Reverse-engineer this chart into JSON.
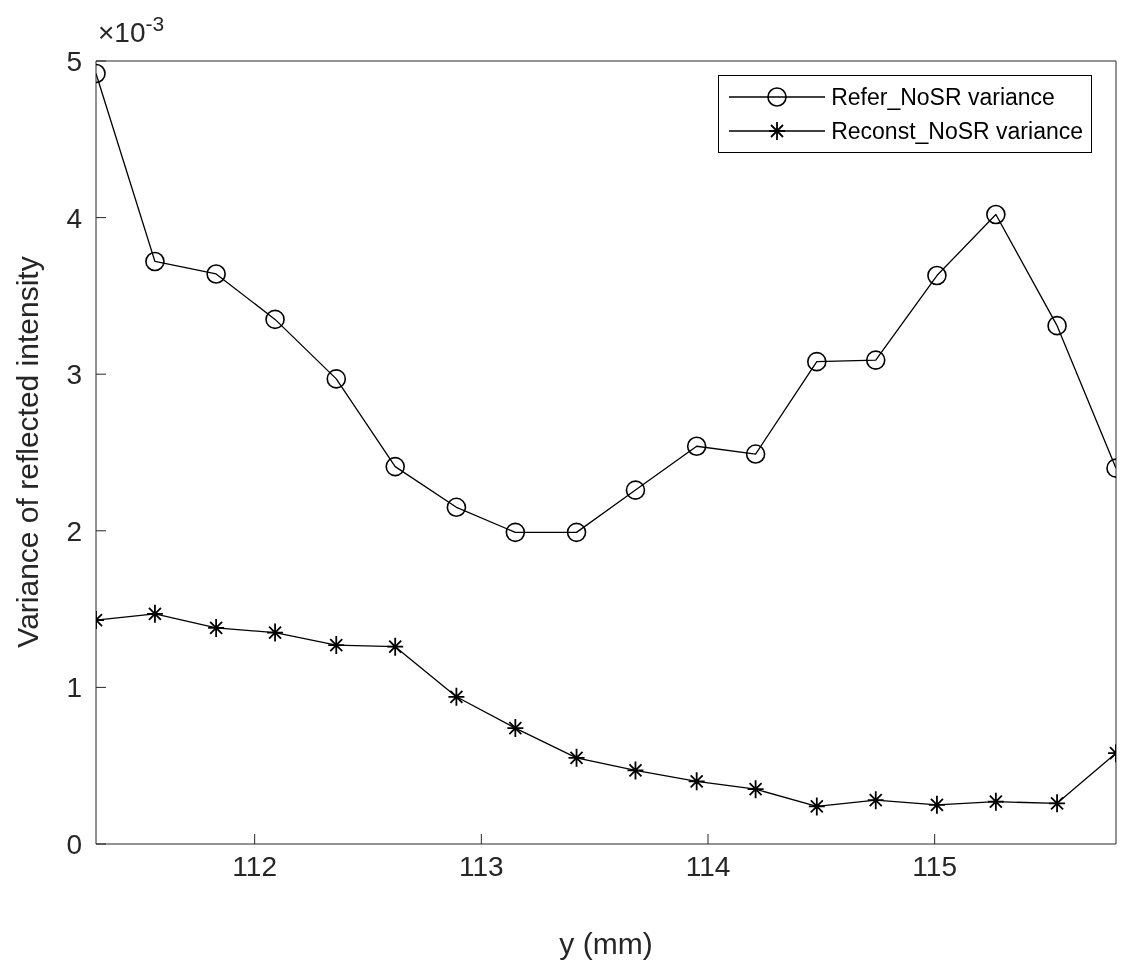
{
  "chart_data": {
    "type": "line",
    "xlabel": "y (mm)",
    "ylabel": "Variance of reflected intensity",
    "annotations": [
      "×10$^{-3}$"
    ],
    "x": [
      111.3,
      111.56,
      111.83,
      112.09,
      112.36,
      112.62,
      112.89,
      113.15,
      113.42,
      113.68,
      113.95,
      114.21,
      114.48,
      114.74,
      115.01,
      115.27,
      115.54,
      115.8
    ],
    "xlim": [
      111.3,
      115.8
    ],
    "xticks": [
      112,
      113,
      114,
      115
    ],
    "ylim": [
      0,
      5
    ],
    "yticks": [
      0,
      1,
      2,
      3,
      4,
      5
    ],
    "legend": "top right",
    "series": [
      {
        "name": "Refer_NoSR variance",
        "color": "#000000",
        "marker": "circle",
        "values": [
          4.92,
          3.72,
          3.64,
          3.35,
          2.97,
          2.41,
          2.15,
          1.99,
          1.99,
          2.26,
          2.54,
          2.49,
          3.08,
          3.09,
          3.63,
          4.02,
          3.31,
          2.4
        ]
      },
      {
        "name": "Reconst_NoSR variance",
        "color": "#000000",
        "marker": "cross",
        "values": [
          1.43,
          1.47,
          1.38,
          1.35,
          1.27,
          1.26,
          0.94,
          0.74,
          0.55,
          0.47,
          0.4,
          0.35,
          0.24,
          0.28,
          0.25,
          0.27,
          0.26,
          0.58
        ]
      }
    ]
  }
}
